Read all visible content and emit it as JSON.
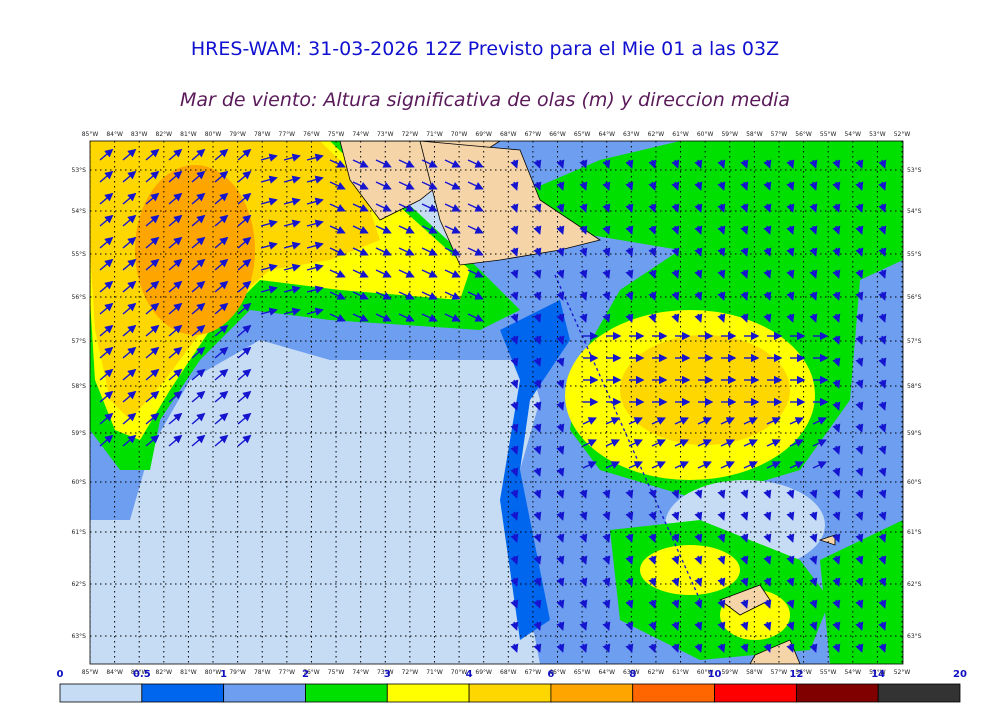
{
  "header": {
    "title": "HRES-WAM: 31-03-2026 12Z Previsto para el Mie 01 a las 03Z",
    "subtitle": "Mar de viento: Altura significativa de olas (m) y direccion media"
  },
  "map": {
    "lon_labels": [
      "85°W",
      "84°W",
      "83°W",
      "82°W",
      "81°W",
      "80°W",
      "79°W",
      "78°W",
      "77°W",
      "76°W",
      "75°W",
      "74°W",
      "73°W",
      "72°W",
      "71°W",
      "70°W",
      "69°W",
      "68°W",
      "67°W",
      "66°W",
      "65°W",
      "64°W",
      "63°W",
      "62°W",
      "61°W",
      "60°W",
      "59°W",
      "58°W",
      "57°W",
      "56°W",
      "55°W",
      "54°W",
      "53°W",
      "52°W"
    ],
    "lat_labels": [
      "53°S",
      "54°S",
      "55°S",
      "56°S",
      "57°S",
      "58°S",
      "59°S",
      "60°S",
      "61°S",
      "62°S",
      "63°S"
    ]
  },
  "colorbar": {
    "levels": [
      0,
      0.5,
      1,
      2,
      3,
      4,
      6,
      8,
      10,
      12,
      14,
      20
    ],
    "colors": [
      "#c6dcf5",
      "#0066ee",
      "#6e9ef0",
      "#00e000",
      "#ffff00",
      "#ffd700",
      "#ffa500",
      "#ff6600",
      "#ff0000",
      "#800000",
      "#333333"
    ]
  }
}
